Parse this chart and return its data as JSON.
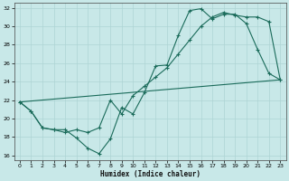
{
  "background_color": "#c8e8e8",
  "grid_color": "#aed4d4",
  "line_color": "#1a6b5a",
  "xlabel": "Humidex (Indice chaleur)",
  "xlim": [
    -0.5,
    23.5
  ],
  "ylim": [
    15.5,
    32.5
  ],
  "yticks": [
    16,
    18,
    20,
    22,
    24,
    26,
    28,
    30,
    32
  ],
  "xticks": [
    0,
    1,
    2,
    3,
    4,
    5,
    6,
    7,
    8,
    9,
    10,
    11,
    12,
    13,
    14,
    15,
    16,
    17,
    18,
    19,
    20,
    21,
    22,
    23
  ],
  "line1_x": [
    0,
    1,
    2,
    3,
    4,
    5,
    6,
    7,
    8,
    9,
    10,
    11,
    12,
    13,
    14,
    15,
    16,
    17,
    18,
    19,
    20,
    21,
    22,
    23
  ],
  "line1_y": [
    21.8,
    20.8,
    19.0,
    18.8,
    18.8,
    17.9,
    16.8,
    16.2,
    17.8,
    21.2,
    20.5,
    22.8,
    25.7,
    25.8,
    29.0,
    31.7,
    31.9,
    30.8,
    31.3,
    31.3,
    30.3,
    27.5,
    24.9,
    24.2
  ],
  "line2_x": [
    0,
    1,
    2,
    3,
    4,
    5,
    6,
    7,
    8,
    9,
    10,
    11,
    12,
    13,
    14,
    15,
    16,
    17,
    18,
    19,
    20,
    21,
    22,
    23
  ],
  "line2_y": [
    21.8,
    20.8,
    19.0,
    18.8,
    18.5,
    18.8,
    18.5,
    19.0,
    22.0,
    20.5,
    22.5,
    23.5,
    24.5,
    25.5,
    27.0,
    28.5,
    30.0,
    31.0,
    31.5,
    31.2,
    31.0,
    31.0,
    30.5,
    24.2
  ],
  "line3_x": [
    0,
    23
  ],
  "line3_y": [
    21.8,
    24.2
  ]
}
